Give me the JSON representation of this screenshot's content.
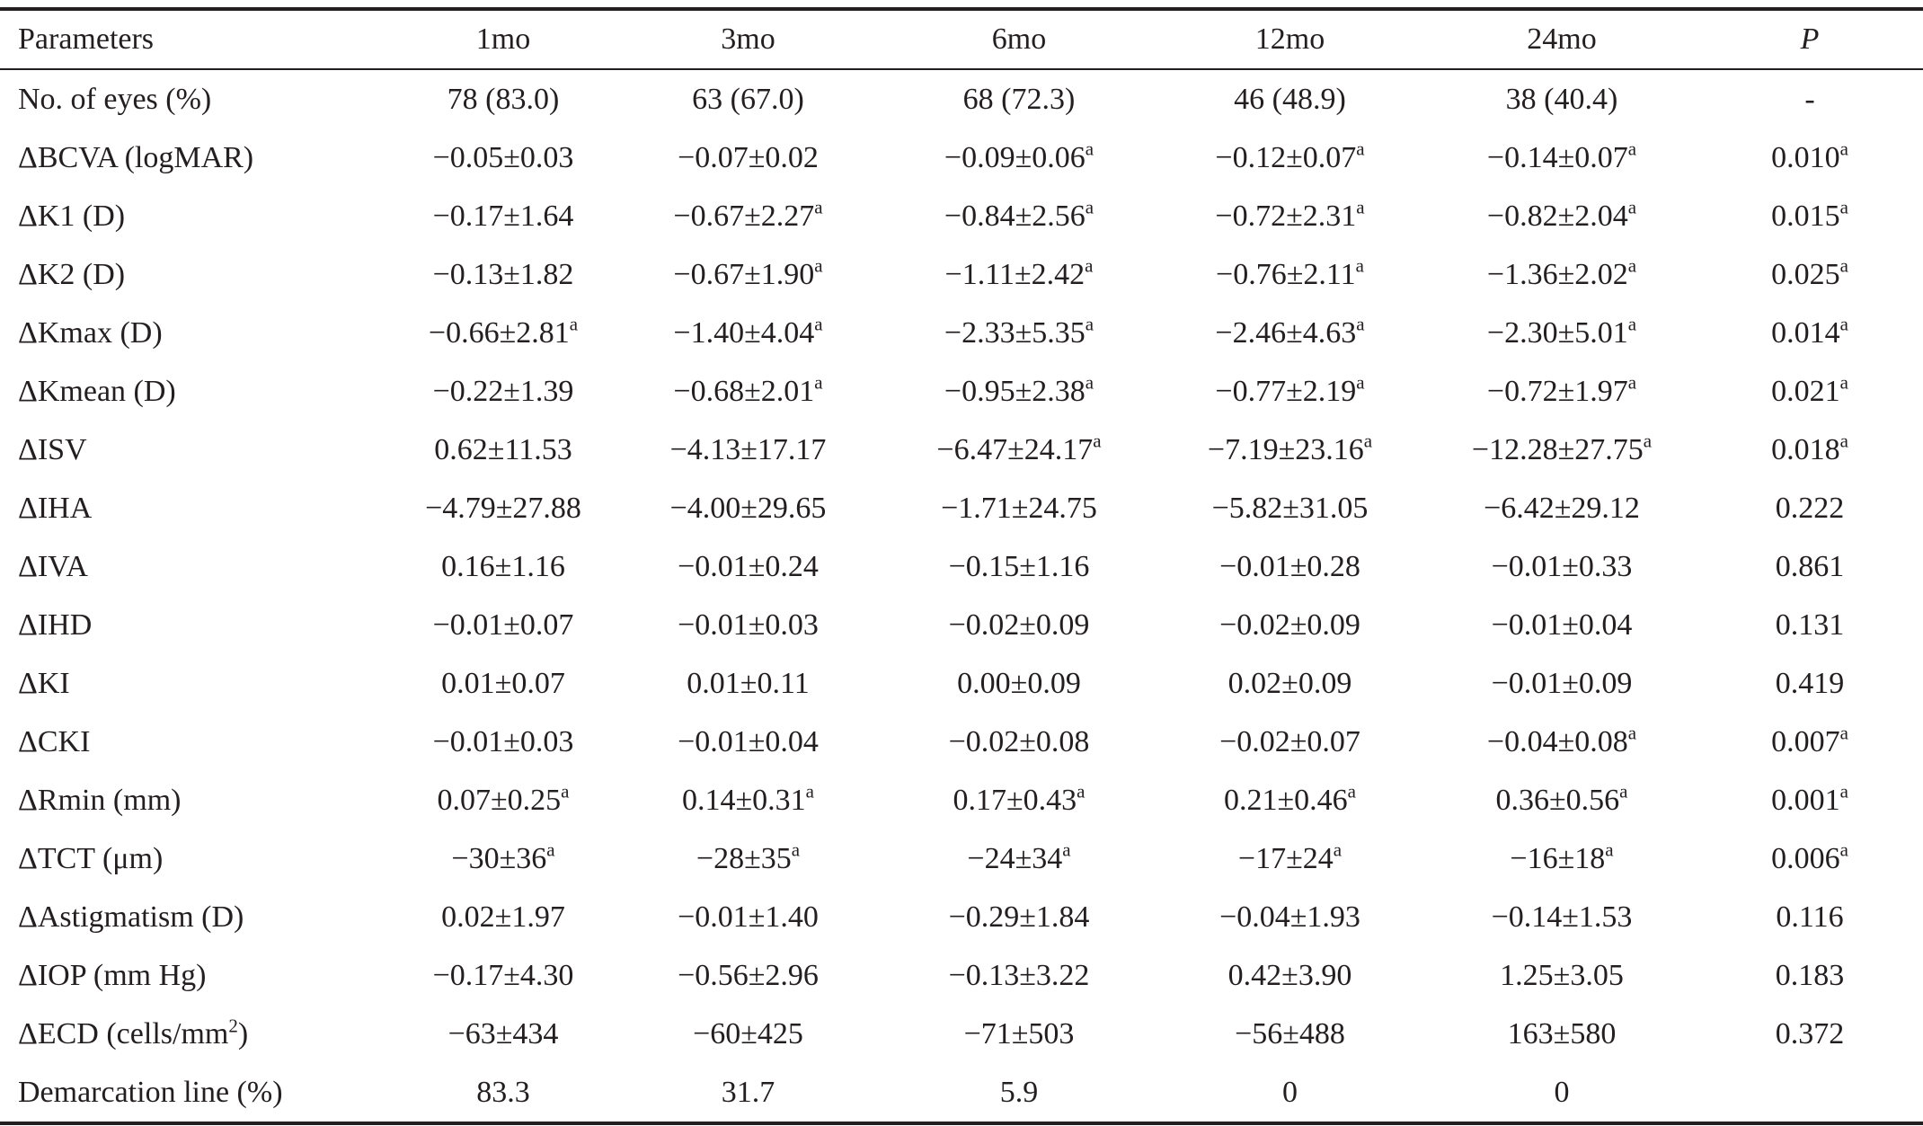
{
  "table": {
    "headers": [
      "Parameters",
      "1mo",
      "3mo",
      "6mo",
      "12mo",
      "24mo",
      "P"
    ],
    "rows": [
      {
        "param": "No. of eyes (%)",
        "cells": [
          {
            "v": "78 (83.0)",
            "s": ""
          },
          {
            "v": "63 (67.0)",
            "s": ""
          },
          {
            "v": "68 (72.3)",
            "s": ""
          },
          {
            "v": "46 (48.9)",
            "s": ""
          },
          {
            "v": "38 (40.4)",
            "s": ""
          },
          {
            "v": "-",
            "s": ""
          }
        ]
      },
      {
        "param": "ΔBCVA (logMAR)",
        "cells": [
          {
            "v": "−0.05±0.03",
            "s": ""
          },
          {
            "v": "−0.07±0.02",
            "s": ""
          },
          {
            "v": "−0.09±0.06",
            "s": "a"
          },
          {
            "v": "−0.12±0.07",
            "s": "a"
          },
          {
            "v": "−0.14±0.07",
            "s": "a"
          },
          {
            "v": "0.010",
            "s": "a"
          }
        ]
      },
      {
        "param": "ΔK1 (D)",
        "cells": [
          {
            "v": "−0.17±1.64",
            "s": ""
          },
          {
            "v": "−0.67±2.27",
            "s": "a"
          },
          {
            "v": "−0.84±2.56",
            "s": "a"
          },
          {
            "v": "−0.72±2.31",
            "s": "a"
          },
          {
            "v": "−0.82±2.04",
            "s": "a"
          },
          {
            "v": "0.015",
            "s": "a"
          }
        ]
      },
      {
        "param": "ΔK2 (D)",
        "cells": [
          {
            "v": "−0.13±1.82",
            "s": ""
          },
          {
            "v": "−0.67±1.90",
            "s": "a"
          },
          {
            "v": "−1.11±2.42",
            "s": "a"
          },
          {
            "v": "−0.76±2.11",
            "s": "a"
          },
          {
            "v": "−1.36±2.02",
            "s": "a"
          },
          {
            "v": "0.025",
            "s": "a"
          }
        ]
      },
      {
        "param": "ΔKmax (D)",
        "cells": [
          {
            "v": "−0.66±2.81",
            "s": "a"
          },
          {
            "v": "−1.40±4.04",
            "s": "a"
          },
          {
            "v": "−2.33±5.35",
            "s": "a"
          },
          {
            "v": "−2.46±4.63",
            "s": "a"
          },
          {
            "v": "−2.30±5.01",
            "s": "a"
          },
          {
            "v": "0.014",
            "s": "a"
          }
        ]
      },
      {
        "param": "ΔKmean (D)",
        "cells": [
          {
            "v": "−0.22±1.39",
            "s": ""
          },
          {
            "v": "−0.68±2.01",
            "s": "a"
          },
          {
            "v": "−0.95±2.38",
            "s": "a"
          },
          {
            "v": "−0.77±2.19",
            "s": "a"
          },
          {
            "v": "−0.72±1.97",
            "s": "a"
          },
          {
            "v": "0.021",
            "s": "a"
          }
        ]
      },
      {
        "param": "ΔISV",
        "cells": [
          {
            "v": "0.62±11.53",
            "s": ""
          },
          {
            "v": "−4.13±17.17",
            "s": ""
          },
          {
            "v": "−6.47±24.17",
            "s": "a"
          },
          {
            "v": "−7.19±23.16",
            "s": "a"
          },
          {
            "v": "−12.28±27.75",
            "s": "a"
          },
          {
            "v": "0.018",
            "s": "a"
          }
        ]
      },
      {
        "param": "ΔIHA",
        "cells": [
          {
            "v": "−4.79±27.88",
            "s": ""
          },
          {
            "v": "−4.00±29.65",
            "s": ""
          },
          {
            "v": "−1.71±24.75",
            "s": ""
          },
          {
            "v": "−5.82±31.05",
            "s": ""
          },
          {
            "v": "−6.42±29.12",
            "s": ""
          },
          {
            "v": "0.222",
            "s": ""
          }
        ]
      },
      {
        "param": "ΔIVA",
        "cells": [
          {
            "v": "0.16±1.16",
            "s": ""
          },
          {
            "v": "−0.01±0.24",
            "s": ""
          },
          {
            "v": "−0.15±1.16",
            "s": ""
          },
          {
            "v": "−0.01±0.28",
            "s": ""
          },
          {
            "v": "−0.01±0.33",
            "s": ""
          },
          {
            "v": "0.861",
            "s": ""
          }
        ]
      },
      {
        "param": "ΔIHD",
        "cells": [
          {
            "v": "−0.01±0.07",
            "s": ""
          },
          {
            "v": "−0.01±0.03",
            "s": ""
          },
          {
            "v": "−0.02±0.09",
            "s": ""
          },
          {
            "v": "−0.02±0.09",
            "s": ""
          },
          {
            "v": "−0.01±0.04",
            "s": ""
          },
          {
            "v": "0.131",
            "s": ""
          }
        ]
      },
      {
        "param": "ΔKI",
        "cells": [
          {
            "v": "0.01±0.07",
            "s": ""
          },
          {
            "v": "0.01±0.11",
            "s": ""
          },
          {
            "v": "0.00±0.09",
            "s": ""
          },
          {
            "v": "0.02±0.09",
            "s": ""
          },
          {
            "v": "−0.01±0.09",
            "s": ""
          },
          {
            "v": "0.419",
            "s": ""
          }
        ]
      },
      {
        "param": "ΔCKI",
        "cells": [
          {
            "v": "−0.01±0.03",
            "s": ""
          },
          {
            "v": "−0.01±0.04",
            "s": ""
          },
          {
            "v": "−0.02±0.08",
            "s": ""
          },
          {
            "v": "−0.02±0.07",
            "s": ""
          },
          {
            "v": "−0.04±0.08",
            "s": "a"
          },
          {
            "v": "0.007",
            "s": "a"
          }
        ]
      },
      {
        "param": "ΔRmin (mm)",
        "cells": [
          {
            "v": "0.07±0.25",
            "s": "a"
          },
          {
            "v": "0.14±0.31",
            "s": "a"
          },
          {
            "v": "0.17±0.43",
            "s": "a"
          },
          {
            "v": "0.21±0.46",
            "s": "a"
          },
          {
            "v": "0.36±0.56",
            "s": "a"
          },
          {
            "v": "0.001",
            "s": "a"
          }
        ]
      },
      {
        "param": "ΔTCT (μm)",
        "cells": [
          {
            "v": "−30±36",
            "s": "a"
          },
          {
            "v": "−28±35",
            "s": "a"
          },
          {
            "v": "−24±34",
            "s": "a"
          },
          {
            "v": "−17±24",
            "s": "a"
          },
          {
            "v": "−16±18",
            "s": "a"
          },
          {
            "v": "0.006",
            "s": "a"
          }
        ]
      },
      {
        "param": "ΔAstigmatism (D)",
        "cells": [
          {
            "v": "0.02±1.97",
            "s": ""
          },
          {
            "v": "−0.01±1.40",
            "s": ""
          },
          {
            "v": "−0.29±1.84",
            "s": ""
          },
          {
            "v": "−0.04±1.93",
            "s": ""
          },
          {
            "v": "−0.14±1.53",
            "s": ""
          },
          {
            "v": "0.116",
            "s": ""
          }
        ]
      },
      {
        "param": "ΔIOP (mm Hg)",
        "cells": [
          {
            "v": "−0.17±4.30",
            "s": ""
          },
          {
            "v": "−0.56±2.96",
            "s": ""
          },
          {
            "v": "−0.13±3.22",
            "s": ""
          },
          {
            "v": "0.42±3.90",
            "s": ""
          },
          {
            "v": "1.25±3.05",
            "s": ""
          },
          {
            "v": "0.183",
            "s": ""
          }
        ]
      },
      {
        "param": "ΔECD (cells/mm",
        "param_sup": "2",
        "param_tail": ")",
        "cells": [
          {
            "v": "−63±434",
            "s": ""
          },
          {
            "v": "−60±425",
            "s": ""
          },
          {
            "v": "−71±503",
            "s": ""
          },
          {
            "v": "−56±488",
            "s": ""
          },
          {
            "v": "163±580",
            "s": ""
          },
          {
            "v": "0.372",
            "s": ""
          }
        ]
      },
      {
        "param": "Demarcation line (%)",
        "cells": [
          {
            "v": "83.3",
            "s": ""
          },
          {
            "v": "31.7",
            "s": ""
          },
          {
            "v": "5.9",
            "s": ""
          },
          {
            "v": "0",
            "s": ""
          },
          {
            "v": "0",
            "s": ""
          },
          {
            "v": "",
            "s": ""
          }
        ]
      }
    ]
  }
}
